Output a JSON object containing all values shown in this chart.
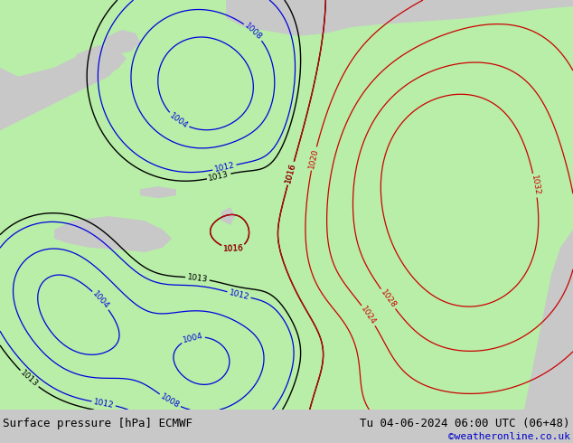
{
  "title_left": "Surface pressure [hPa] ECMWF",
  "title_right": "Tu 04-06-2024 06:00 UTC (06+48)",
  "copyright": "©weatheronline.co.uk",
  "bg_color": "#c8c8c8",
  "land_color": "#b8eea8",
  "sea_color": "#c8c8c8",
  "figsize": [
    6.34,
    4.9
  ],
  "dpi": 100,
  "bottom_bar_color": "#e0e0e0",
  "title_fontsize": 9.0,
  "copyright_color": "#0000cc",
  "copyright_fontsize": 8
}
